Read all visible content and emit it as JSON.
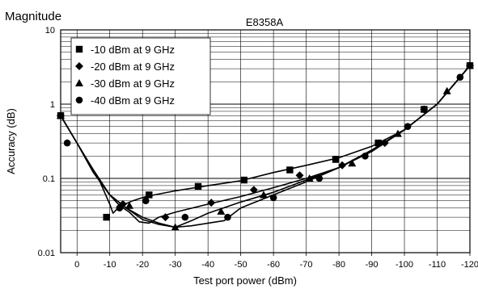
{
  "header": {
    "corner_label": "Magnitude",
    "title": "E8358A"
  },
  "chart_data": {
    "type": "line",
    "title": "E8358A",
    "xlabel": "Test port power (dBm)",
    "ylabel": "Accuracy (dB)",
    "x_ticks": [
      "0",
      "-10",
      "-20",
      "-30",
      "-40",
      "-50",
      "-60",
      "-70",
      "-80",
      "-90",
      "-100",
      "-110",
      "-120"
    ],
    "y_ticks": [
      "10",
      "1",
      "0.1",
      "0.01"
    ],
    "xlim": [
      5,
      -120
    ],
    "ylim": [
      0.01,
      10
    ],
    "y_scale": "log",
    "grid": true,
    "legend_position": "top-left",
    "series": [
      {
        "name": "-10 dBm at 9 GHz",
        "marker": "square",
        "x": [
          5,
          0,
          -4,
          -7,
          -10,
          -11,
          -13,
          -17,
          -21,
          -30,
          -40,
          -50,
          -60,
          -70,
          -80,
          -90,
          -100,
          -110,
          -120
        ],
        "y": [
          0.7,
          0.3,
          0.15,
          0.09,
          0.045,
          0.034,
          0.042,
          0.05,
          0.057,
          0.068,
          0.08,
          0.093,
          0.12,
          0.15,
          0.19,
          0.27,
          0.45,
          1.0,
          3.3
        ],
        "markers_x": [
          5,
          -9,
          -22,
          -37,
          -51,
          -65,
          -79,
          -92,
          -106,
          -120
        ],
        "markers_y": [
          0.7,
          0.03,
          0.06,
          0.078,
          0.095,
          0.13,
          0.18,
          0.3,
          0.85,
          3.3
        ]
      },
      {
        "name": "-20 dBm at 9 GHz",
        "marker": "diamond",
        "x": [
          5,
          0,
          -5,
          -10,
          -13,
          -16,
          -19,
          -22,
          -25,
          -30,
          -40,
          -50,
          -60,
          -70,
          -80,
          -90,
          -100,
          -110,
          -120
        ],
        "y": [
          0.7,
          0.3,
          0.13,
          0.06,
          0.043,
          0.035,
          0.026,
          0.025,
          0.03,
          0.035,
          0.045,
          0.057,
          0.075,
          0.1,
          0.14,
          0.23,
          0.45,
          1.0,
          3.3
        ],
        "markers_x": [
          5,
          -14,
          -27,
          -41,
          -54,
          -68,
          -81,
          -94,
          -106,
          -120
        ],
        "markers_y": [
          0.7,
          0.045,
          0.03,
          0.047,
          0.07,
          0.11,
          0.15,
          0.3,
          0.85,
          3.3
        ]
      },
      {
        "name": "-30 dBm at 9 GHz",
        "marker": "triangle",
        "x": [
          5,
          0,
          -5,
          -10,
          -15,
          -20,
          -25,
          -30,
          -35,
          -40,
          -50,
          -60,
          -70,
          -80,
          -90,
          -100,
          -110,
          -120
        ],
        "y": [
          0.7,
          0.3,
          0.12,
          0.06,
          0.04,
          0.028,
          0.024,
          0.022,
          0.027,
          0.034,
          0.048,
          0.065,
          0.095,
          0.14,
          0.24,
          0.45,
          1.0,
          3.3
        ],
        "markers_x": [
          5,
          -16,
          -30,
          -44,
          -57,
          -71,
          -84,
          -98,
          -113,
          -120
        ],
        "markers_y": [
          0.7,
          0.043,
          0.022,
          0.036,
          0.06,
          0.1,
          0.16,
          0.4,
          1.5,
          3.3
        ]
      },
      {
        "name": "-40 dBm at 9 GHz",
        "marker": "circle",
        "x": [
          5,
          0,
          -5,
          -10,
          -15,
          -20,
          -25,
          -30,
          -35,
          -40,
          -45,
          -50,
          -60,
          -70,
          -80,
          -90,
          -100,
          -110,
          -120
        ],
        "y": [
          0.7,
          0.3,
          0.12,
          0.06,
          0.04,
          0.03,
          0.025,
          0.022,
          0.023,
          0.025,
          0.027,
          0.04,
          0.06,
          0.09,
          0.14,
          0.24,
          0.45,
          1.0,
          3.3
        ],
        "markers_x": [
          5,
          5,
          3,
          -13,
          -21,
          -33,
          -46,
          -60,
          -74,
          -88,
          -101,
          -117
        ],
        "markers_y": [
          0.7,
          0.7,
          0.3,
          0.04,
          0.05,
          0.03,
          0.03,
          0.055,
          0.1,
          0.2,
          0.5,
          2.3
        ]
      }
    ]
  }
}
